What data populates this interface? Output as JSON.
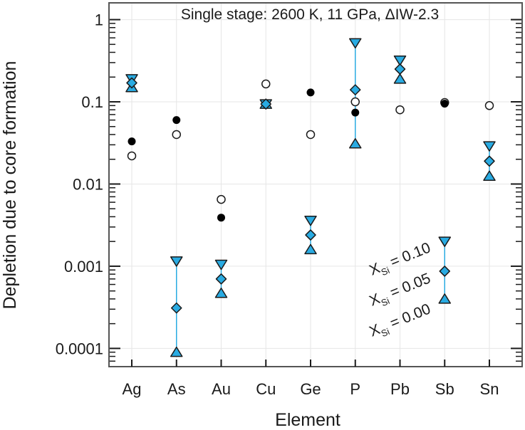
{
  "chart_data": {
    "type": "scatter",
    "title": "Single stage: 2600 K, 11 GPa, ΔIW-2.3",
    "xlabel": "Element",
    "ylabel": "Depletion due to core formation",
    "yscale": "log",
    "ylim": [
      6e-05,
      1.6
    ],
    "categories": [
      "Ag",
      "As",
      "Au",
      "Cu",
      "Ge",
      "P",
      "Pb",
      "Sb",
      "Sn"
    ],
    "y_ticks": [
      {
        "value": 1,
        "label": "1"
      },
      {
        "value": 0.1,
        "label": "0.1"
      },
      {
        "value": 0.01,
        "label": "0.01"
      },
      {
        "value": 0.001,
        "label": "0.001"
      },
      {
        "value": 0.0001,
        "label": "0.0001"
      }
    ],
    "grid": true,
    "accent_color": "#29abe2",
    "series": [
      {
        "marker": "filled-circle",
        "values": [
          0.033,
          0.06,
          0.0039,
          null,
          0.13,
          0.074,
          null,
          0.095,
          null
        ]
      },
      {
        "marker": "open-circle",
        "values": [
          0.022,
          0.04,
          0.0065,
          0.165,
          0.04,
          0.1,
          0.08,
          0.098,
          0.09
        ]
      },
      {
        "marker": "down-triangle",
        "xsi": 0.1,
        "values": [
          0.19,
          0.00115,
          0.00105,
          0.094,
          0.0036,
          0.52,
          0.32,
          0.002,
          0.029
        ]
      },
      {
        "marker": "diamond",
        "xsi": 0.05,
        "values": [
          0.17,
          0.00031,
          0.0007,
          0.094,
          0.0024,
          0.14,
          0.25,
          0.00087,
          0.019
        ]
      },
      {
        "marker": "up-triangle",
        "xsi": 0.0,
        "values": [
          0.15,
          9e-05,
          0.00047,
          0.094,
          0.0016,
          0.031,
          0.19,
          0.0004,
          0.0125
        ]
      }
    ],
    "legend_annotations": [
      {
        "symbol": "X",
        "sub": "Si",
        "text": " = 0.10"
      },
      {
        "symbol": "X",
        "sub": "Si",
        "text": " = 0.05"
      },
      {
        "symbol": "X",
        "sub": "Si",
        "text": " = 0.00"
      }
    ]
  }
}
